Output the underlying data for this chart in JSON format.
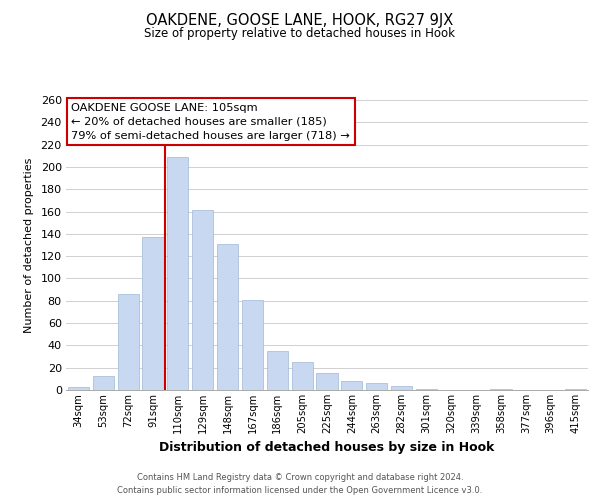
{
  "title": "OAKDENE, GOOSE LANE, HOOK, RG27 9JX",
  "subtitle": "Size of property relative to detached houses in Hook",
  "xlabel": "Distribution of detached houses by size in Hook",
  "ylabel": "Number of detached properties",
  "categories": [
    "34sqm",
    "53sqm",
    "72sqm",
    "91sqm",
    "110sqm",
    "129sqm",
    "148sqm",
    "167sqm",
    "186sqm",
    "205sqm",
    "225sqm",
    "244sqm",
    "263sqm",
    "282sqm",
    "301sqm",
    "320sqm",
    "339sqm",
    "358sqm",
    "377sqm",
    "396sqm",
    "415sqm"
  ],
  "values": [
    3,
    13,
    86,
    137,
    209,
    161,
    131,
    81,
    35,
    25,
    15,
    8,
    6,
    4,
    1,
    0,
    0,
    1,
    0,
    0,
    1
  ],
  "bar_color": "#c8d8f0",
  "bar_edge_color": "#a0b8d8",
  "marker_index": 4,
  "marker_color": "#cc0000",
  "annotation_title": "OAKDENE GOOSE LANE: 105sqm",
  "annotation_line1": "← 20% of detached houses are smaller (185)",
  "annotation_line2": "79% of semi-detached houses are larger (718) →",
  "annotation_box_color": "#ffffff",
  "annotation_box_edge": "#cc0000",
  "ylim": [
    0,
    260
  ],
  "yticks": [
    0,
    20,
    40,
    60,
    80,
    100,
    120,
    140,
    160,
    180,
    200,
    220,
    240,
    260
  ],
  "footer1": "Contains HM Land Registry data © Crown copyright and database right 2024.",
  "footer2": "Contains public sector information licensed under the Open Government Licence v3.0.",
  "background_color": "#ffffff",
  "grid_color": "#d0d0d0"
}
